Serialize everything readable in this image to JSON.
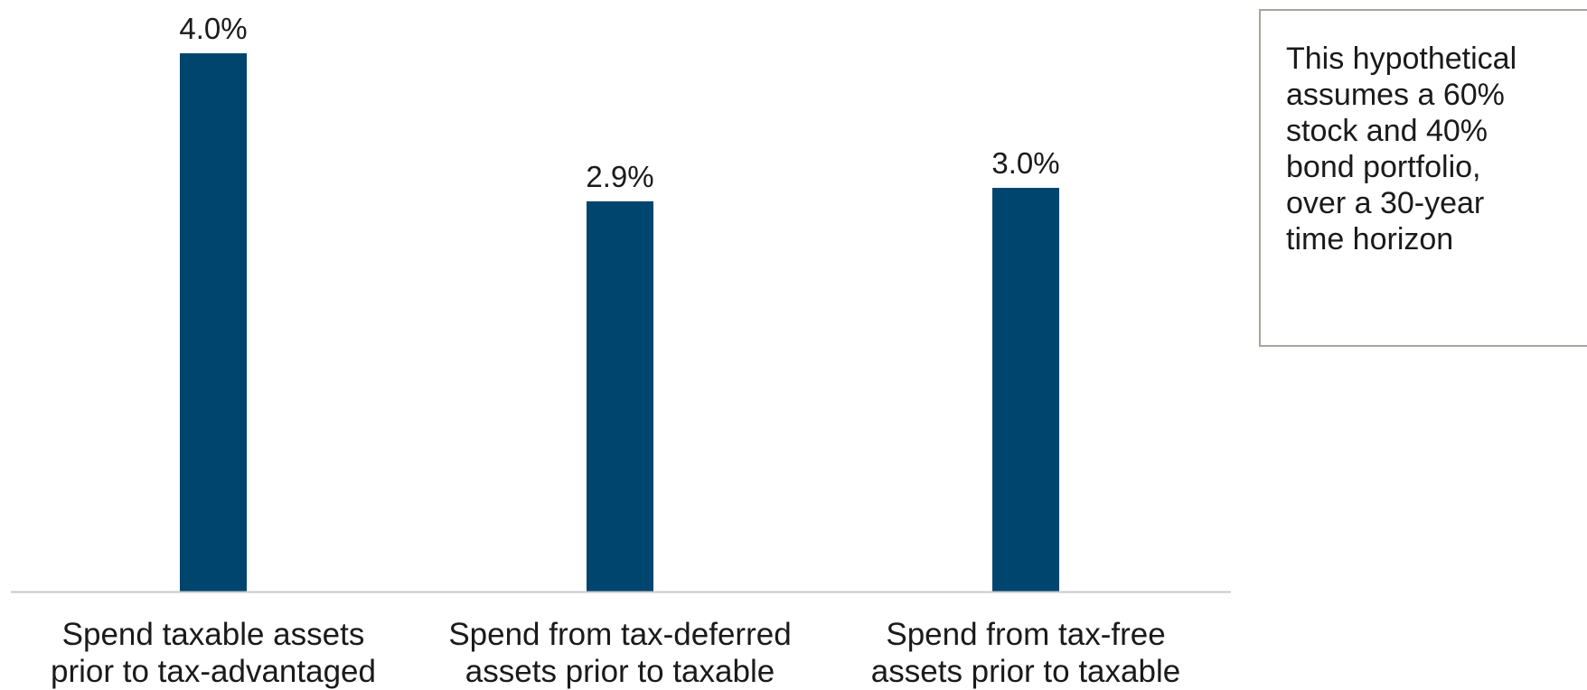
{
  "chart_data": {
    "type": "bar",
    "categories": [
      "Spend taxable assets\nprior to tax-advantaged",
      "Spend from tax-deferred\nassets prior to taxable",
      "Spend from tax-free\nassets prior to taxable"
    ],
    "values": [
      4.0,
      2.9,
      3.0
    ],
    "data_labels": [
      "4.0%",
      "2.9%",
      "3.0%"
    ],
    "ylim": [
      0,
      4.0
    ],
    "grid": false,
    "bar_color": "#00456e",
    "axis_color": "#c8c8c8"
  },
  "note": {
    "text": "This hypothetical\nassumes a 60%\nstock and 40%\nbond portfolio,\nover a 30-year\ntime horizon"
  }
}
